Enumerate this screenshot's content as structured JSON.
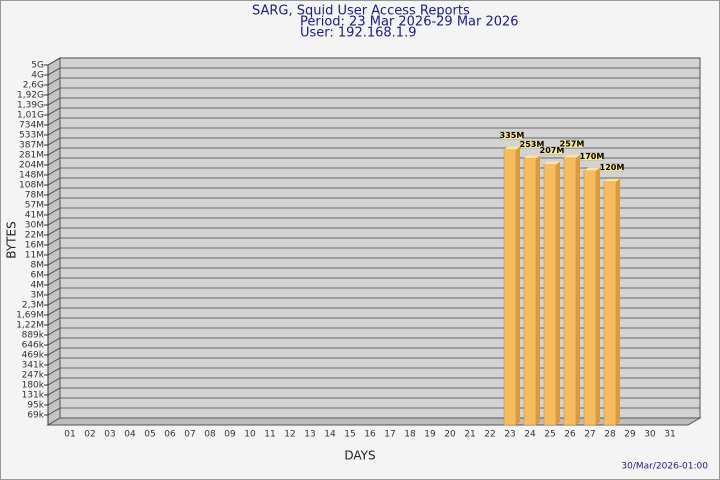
{
  "chart_data": {
    "type": "bar",
    "title": "SARG, Squid User Access Reports",
    "subtitle": "Period: 23 Mar 2026-29 Mar 2026",
    "user": "User: 192.168.1.9",
    "x_label": "DAYS",
    "y_label": "BYTES",
    "footer": "30/Mar/2026-01:00",
    "color": "#f7bb60",
    "grid": true,
    "categories": [
      "01",
      "02",
      "03",
      "04",
      "05",
      "06",
      "07",
      "08",
      "09",
      "10",
      "11",
      "12",
      "13",
      "14",
      "15",
      "16",
      "17",
      "18",
      "19",
      "20",
      "21",
      "22",
      "23",
      "24",
      "25",
      "26",
      "27",
      "28",
      "29",
      "30",
      "31"
    ],
    "values": [
      null,
      null,
      null,
      null,
      null,
      null,
      null,
      null,
      null,
      null,
      null,
      null,
      null,
      null,
      null,
      null,
      null,
      null,
      null,
      null,
      null,
      null,
      335000000,
      253000000,
      207000000,
      257000000,
      170000000,
      120000000,
      null,
      null,
      null
    ],
    "value_labels": [
      null,
      null,
      null,
      null,
      null,
      null,
      null,
      null,
      null,
      null,
      null,
      null,
      null,
      null,
      null,
      null,
      null,
      null,
      null,
      null,
      null,
      null,
      "335M",
      "253M",
      "207M",
      "257M",
      "170M",
      "120M",
      null,
      null,
      null
    ],
    "yticks": [
      {
        "value": 5000000000,
        "label": "5G"
      },
      {
        "value": 4000000000,
        "label": "4G"
      },
      {
        "value": 2600000000,
        "label": "2,6G"
      },
      {
        "value": 1920000000,
        "label": "1,92G"
      },
      {
        "value": 1390000000,
        "label": "1,39G"
      },
      {
        "value": 1010000000,
        "label": "1,01G"
      },
      {
        "value": 734000000,
        "label": "734M"
      },
      {
        "value": 533000000,
        "label": "533M"
      },
      {
        "value": 387000000,
        "label": "387M"
      },
      {
        "value": 281000000,
        "label": "281M"
      },
      {
        "value": 204000000,
        "label": "204M"
      },
      {
        "value": 148000000,
        "label": "148M"
      },
      {
        "value": 108000000,
        "label": "108M"
      },
      {
        "value": 78000000,
        "label": "78M"
      },
      {
        "value": 57000000,
        "label": "57M"
      },
      {
        "value": 41000000,
        "label": "41M"
      },
      {
        "value": 30000000,
        "label": "30M"
      },
      {
        "value": 22000000,
        "label": "22M"
      },
      {
        "value": 16000000,
        "label": "16M"
      },
      {
        "value": 11000000,
        "label": "11M"
      },
      {
        "value": 8000000,
        "label": "8M"
      },
      {
        "value": 6000000,
        "label": "6M"
      },
      {
        "value": 4000000,
        "label": "4M"
      },
      {
        "value": 3000000,
        "label": "3M"
      },
      {
        "value": 2300000,
        "label": "2,3M"
      },
      {
        "value": 1690000,
        "label": "1,69M"
      },
      {
        "value": 1220000,
        "label": "1,22M"
      },
      {
        "value": 889000,
        "label": "889k"
      },
      {
        "value": 646000,
        "label": "646k"
      },
      {
        "value": 469000,
        "label": "469k"
      },
      {
        "value": 341000,
        "label": "341k"
      },
      {
        "value": 247000,
        "label": "247k"
      },
      {
        "value": 180000,
        "label": "180k"
      },
      {
        "value": 131000,
        "label": "131k"
      },
      {
        "value": 95000,
        "label": "95k"
      },
      {
        "value": 69000,
        "label": "69k"
      }
    ]
  }
}
